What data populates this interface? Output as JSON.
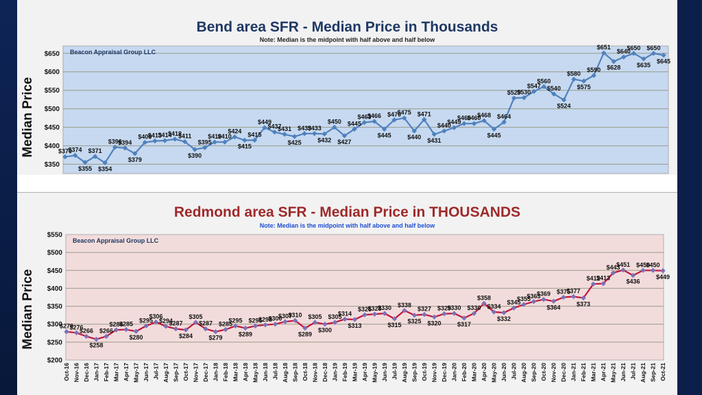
{
  "chart_data": [
    {
      "type": "line",
      "title": "Bend area SFR - Median Price in Thousands",
      "subtitle": "Note: Median is the midpoint with half above and half below",
      "watermark": "Beacon Appraisal Group LLC",
      "ylabel": "Median Price",
      "xlabel": "",
      "ylim": [
        325,
        670
      ],
      "yticks": [
        "$350",
        "$400",
        "$450",
        "$500",
        "$550",
        "$600",
        "$650"
      ],
      "ytick_values": [
        350,
        400,
        450,
        500,
        550,
        600,
        650
      ],
      "grid": true,
      "line_color": "#4f81bd",
      "plot_bg": "#c6d9f0",
      "values": [
        370,
        374,
        355,
        371,
        354,
        396,
        394,
        379,
        409,
        413,
        414,
        418,
        411,
        390,
        395,
        410,
        410,
        424,
        415,
        415,
        449,
        437,
        431,
        425,
        433,
        433,
        432,
        450,
        427,
        445,
        463,
        466,
        445,
        470,
        475,
        440,
        471,
        431,
        440,
        449,
        460,
        460,
        468,
        445,
        464,
        529,
        530,
        547,
        560,
        540,
        524,
        580,
        575,
        590,
        651,
        628,
        640,
        650,
        635,
        650,
        645
      ]
    },
    {
      "type": "line",
      "title": "Redmond area SFR - Median Price in THOUSANDS",
      "subtitle": "Note:  Median is the midpoint with half above and half below",
      "watermark": "Beacon Appraisal Group LLC",
      "ylabel": "Median Price",
      "xlabel": "",
      "ylim": [
        200,
        550
      ],
      "yticks": [
        "$200",
        "$250",
        "$300",
        "$350",
        "$400",
        "$450",
        "$500",
        "$550"
      ],
      "ytick_values": [
        200,
        250,
        300,
        350,
        400,
        450,
        500,
        550
      ],
      "grid": true,
      "line_color": "#c0143c",
      "marker_color": "#7a72b8",
      "plot_bg": "#f2dcdb",
      "categories": [
        "Oct-16",
        "Nov-16",
        "Dec-16",
        "Jan-17",
        "Feb-17",
        "Mar-17",
        "Apr-17",
        "May-17",
        "Jun-17",
        "Jul-17",
        "Aug-17",
        "Sep-17",
        "Oct-17",
        "Nov-17",
        "Dec-17",
        "Jan-18",
        "Feb-18",
        "Mar-18",
        "Apr-18",
        "May-18",
        "Jun-18",
        "Jul-18",
        "Aug-18",
        "Sep-18",
        "Oct-18",
        "Nov-18",
        "Dec-18",
        "Jan-19",
        "Feb-19",
        "Mar-19",
        "Apr-19",
        "May-19",
        "Jun-19",
        "Jul-19",
        "Aug-19",
        "Sep-19",
        "Oct-19",
        "Nov-19",
        "Dec-19",
        "Jan-20",
        "Feb-20",
        "Mar-20",
        "Apr-20",
        "May-20",
        "Jun-20",
        "Jul-20",
        "Aug-20",
        "Sep-20",
        "Oct-20",
        "Nov-20",
        "Dec-20",
        "Jan-21",
        "Feb-21",
        "Mar-21",
        "Apr-21",
        "May-21",
        "Jun-21",
        "Jul-21",
        "Aug-21",
        "Sep-21",
        "Oct-21"
      ],
      "values": [
        279,
        276,
        266,
        258,
        266,
        284,
        285,
        280,
        295,
        306,
        294,
        287,
        284,
        305,
        287,
        279,
        285,
        295,
        289,
        295,
        298,
        300,
        307,
        310,
        289,
        305,
        300,
        305,
        314,
        313,
        326,
        328,
        330,
        315,
        338,
        325,
        327,
        320,
        329,
        330,
        317,
        330,
        358,
        334,
        332,
        345,
        355,
        363,
        369,
        364,
        375,
        377,
        373,
        412,
        413,
        443,
        451,
        436,
        450,
        450,
        449
      ]
    }
  ]
}
